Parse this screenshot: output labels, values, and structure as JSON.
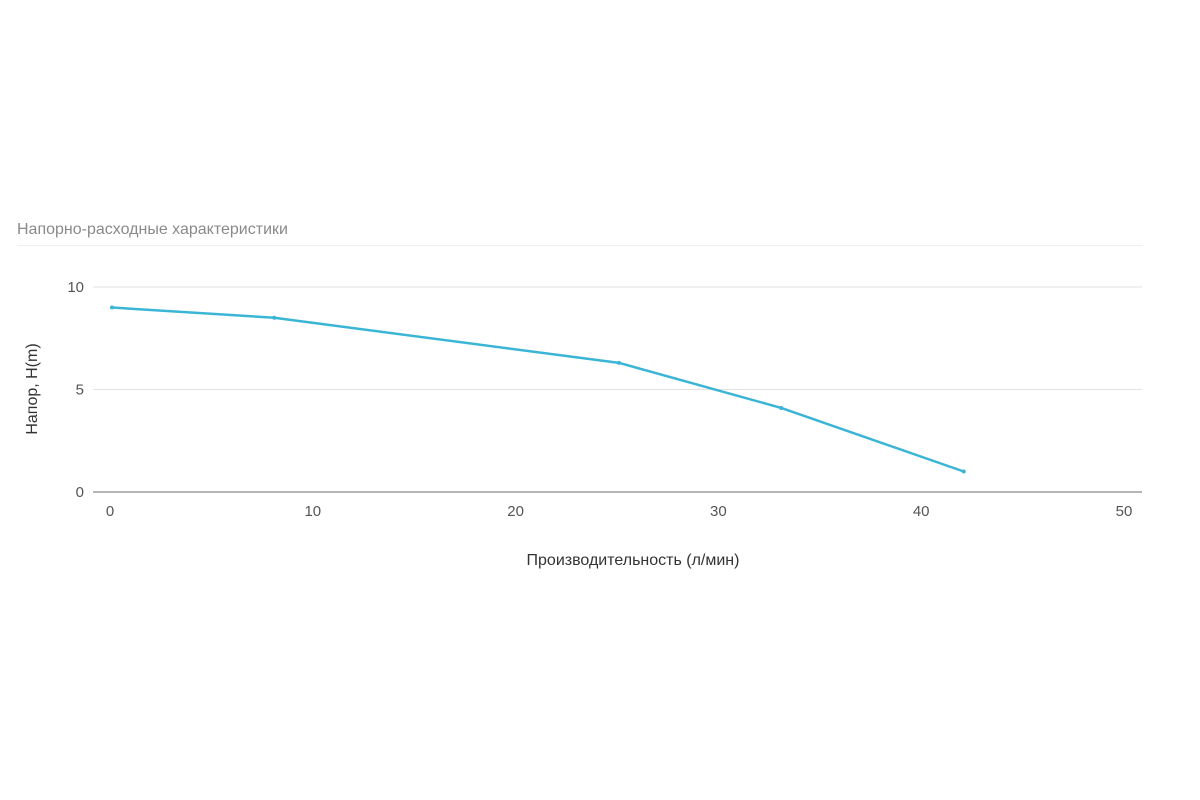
{
  "chart_data": {
    "type": "line",
    "title": "Напорно-расходные характеристики",
    "xlabel": "Производительность (л/мин)",
    "ylabel": "Напор, H(m)",
    "xlim": [
      0,
      50
    ],
    "ylim": [
      0,
      10
    ],
    "x_ticks": [
      "0",
      "10",
      "20",
      "30",
      "40",
      "50"
    ],
    "y_ticks": [
      "0",
      "5",
      "10"
    ],
    "grid": "horizontal",
    "legend": "none",
    "line_color": "#3bb5d6",
    "series": [
      {
        "x": [
          0,
          8,
          25,
          33,
          42
        ],
        "values": [
          9.0,
          8.5,
          6.3,
          4.1,
          1.0
        ]
      }
    ]
  }
}
